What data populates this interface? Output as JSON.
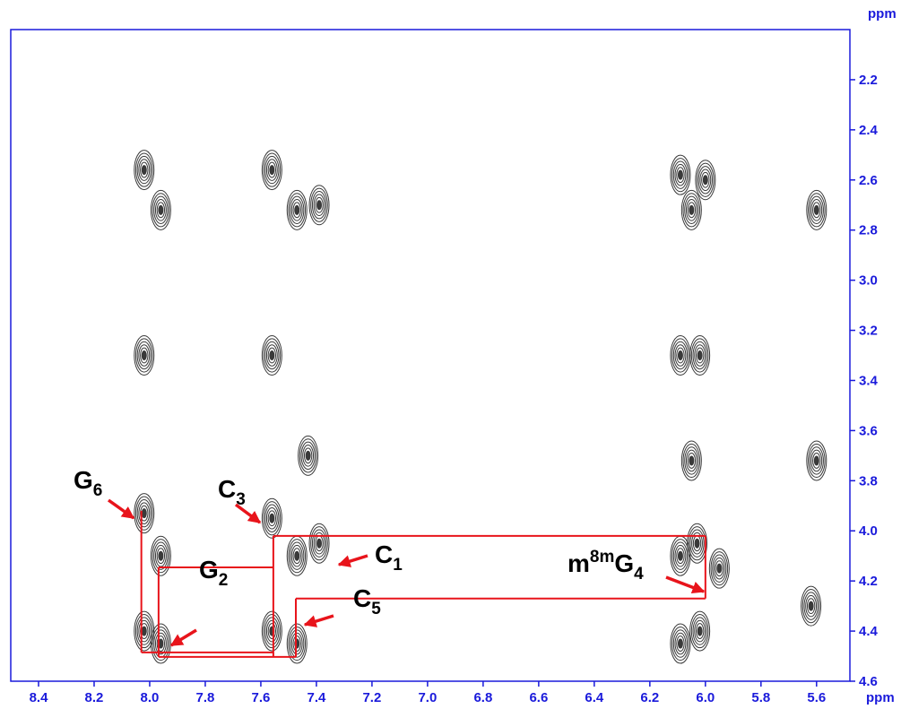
{
  "chart_data": {
    "type": "contour",
    "x_label": "ppm",
    "y_label": "ppm",
    "xlim": [
      8.5,
      5.48
    ],
    "ylim": [
      2.0,
      4.6
    ],
    "xticks": [
      8.4,
      8.2,
      {
        "value": 8.0,
        "label": "8.0"
      },
      7.8,
      7.6,
      7.4,
      7.2,
      {
        "value": 7.0,
        "label": "7.0"
      },
      6.8,
      6.6,
      6.4,
      6.2,
      {
        "value": 6.0,
        "label": "6.0"
      },
      5.8,
      5.6
    ],
    "yticks": [
      2.2,
      2.4,
      2.6,
      2.8,
      {
        "value": 3.0,
        "label": "3.0"
      },
      3.2,
      3.4,
      3.6,
      3.8,
      {
        "value": 4.0,
        "label": "4.0"
      },
      4.2,
      4.4,
      4.6
    ],
    "axis_color": "#1a1adb",
    "contour_color": "#3a3a3a",
    "line_color": "#e8141b",
    "peaks": {
      "x": [
        8.02,
        7.96,
        7.56,
        7.47,
        7.39,
        6.09,
        6.05,
        6.0,
        5.6,
        8.02,
        7.56,
        6.09,
        6.02,
        7.43,
        6.05,
        5.6,
        8.02,
        7.96,
        7.56,
        7.47,
        7.39,
        6.09,
        6.03,
        5.95,
        5.62,
        8.02,
        7.96,
        7.56,
        7.47,
        6.09,
        6.02
      ],
      "y": [
        2.56,
        2.72,
        2.56,
        2.72,
        2.7,
        2.58,
        2.72,
        2.6,
        2.72,
        3.3,
        3.3,
        3.3,
        3.3,
        3.7,
        3.72,
        3.72,
        3.93,
        4.1,
        3.95,
        4.1,
        4.05,
        4.1,
        4.05,
        4.15,
        4.3,
        4.4,
        4.45,
        4.4,
        4.45,
        4.45,
        4.4
      ]
    },
    "connections": [
      [
        8.03,
        3.92,
        8.03,
        4.485
      ],
      [
        8.03,
        4.485,
        7.555,
        4.485
      ],
      [
        7.968,
        4.146,
        7.968,
        4.503
      ],
      [
        7.968,
        4.146,
        7.555,
        4.146
      ],
      [
        7.555,
        4.02,
        7.555,
        4.503
      ],
      [
        7.968,
        4.503,
        7.474,
        4.503
      ],
      [
        7.474,
        4.27,
        7.474,
        4.503
      ],
      [
        7.555,
        4.02,
        6.0,
        4.02
      ],
      [
        7.474,
        4.27,
        6.0,
        4.27
      ],
      [
        6.0,
        4.02,
        6.0,
        4.27
      ]
    ],
    "annotations": [
      [
        "G",
        "6"
      ],
      [
        "C",
        "3"
      ],
      [
        "C",
        "1"
      ],
      [
        "G",
        "2"
      ],
      [
        "C",
        "5"
      ],
      [
        "m",
        "8m",
        "G",
        "4"
      ]
    ]
  }
}
